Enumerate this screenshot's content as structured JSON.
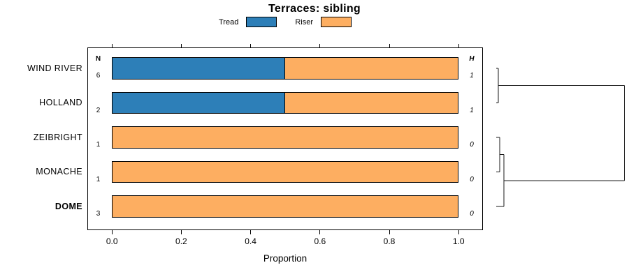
{
  "title": "Terraces: sibling",
  "legend": {
    "items": [
      {
        "label": "Tread",
        "color": "#2d7fb8"
      },
      {
        "label": "Riser",
        "color": "#fdae61"
      }
    ]
  },
  "chart_data": {
    "type": "bar",
    "orientation": "horizontal",
    "stacked": true,
    "title": "Terraces: sibling",
    "xlabel": "Proportion",
    "xlim": [
      0,
      1
    ],
    "x_ticks": [
      "0.0",
      "0.2",
      "0.4",
      "0.6",
      "0.8",
      "1.0"
    ],
    "grid": false,
    "legend_position": "top",
    "categories": [
      "WIND RIVER",
      "HOLLAND",
      "ZEIBRIGHT",
      "MONACHE",
      "DOME"
    ],
    "bold_categories": [
      "DOME"
    ],
    "series": [
      {
        "name": "Tread",
        "color": "#2d7fb8",
        "values": [
          0.5,
          0.5,
          0,
          0,
          0
        ]
      },
      {
        "name": "Riser",
        "color": "#fdae61",
        "values": [
          0.5,
          0.5,
          1,
          1,
          1
        ]
      }
    ],
    "n_header": "N",
    "n_values": [
      6,
      2,
      1,
      1,
      3
    ],
    "h_header": "H",
    "h_values": [
      1,
      1,
      0,
      0,
      0
    ],
    "dendrogram": {
      "side": "right",
      "root": {
        "height": 1.0,
        "children": [
          {
            "height": 0.016,
            "children": [
              {
                "leaf": "WIND RIVER"
              },
              {
                "leaf": "HOLLAND"
              }
            ]
          },
          {
            "height": 0.06,
            "children": [
              {
                "height": 0.027,
                "children": [
                  {
                    "leaf": "ZEIBRIGHT"
                  },
                  {
                    "leaf": "MONACHE"
                  }
                ]
              },
              {
                "leaf": "DOME"
              }
            ]
          }
        ]
      }
    }
  }
}
